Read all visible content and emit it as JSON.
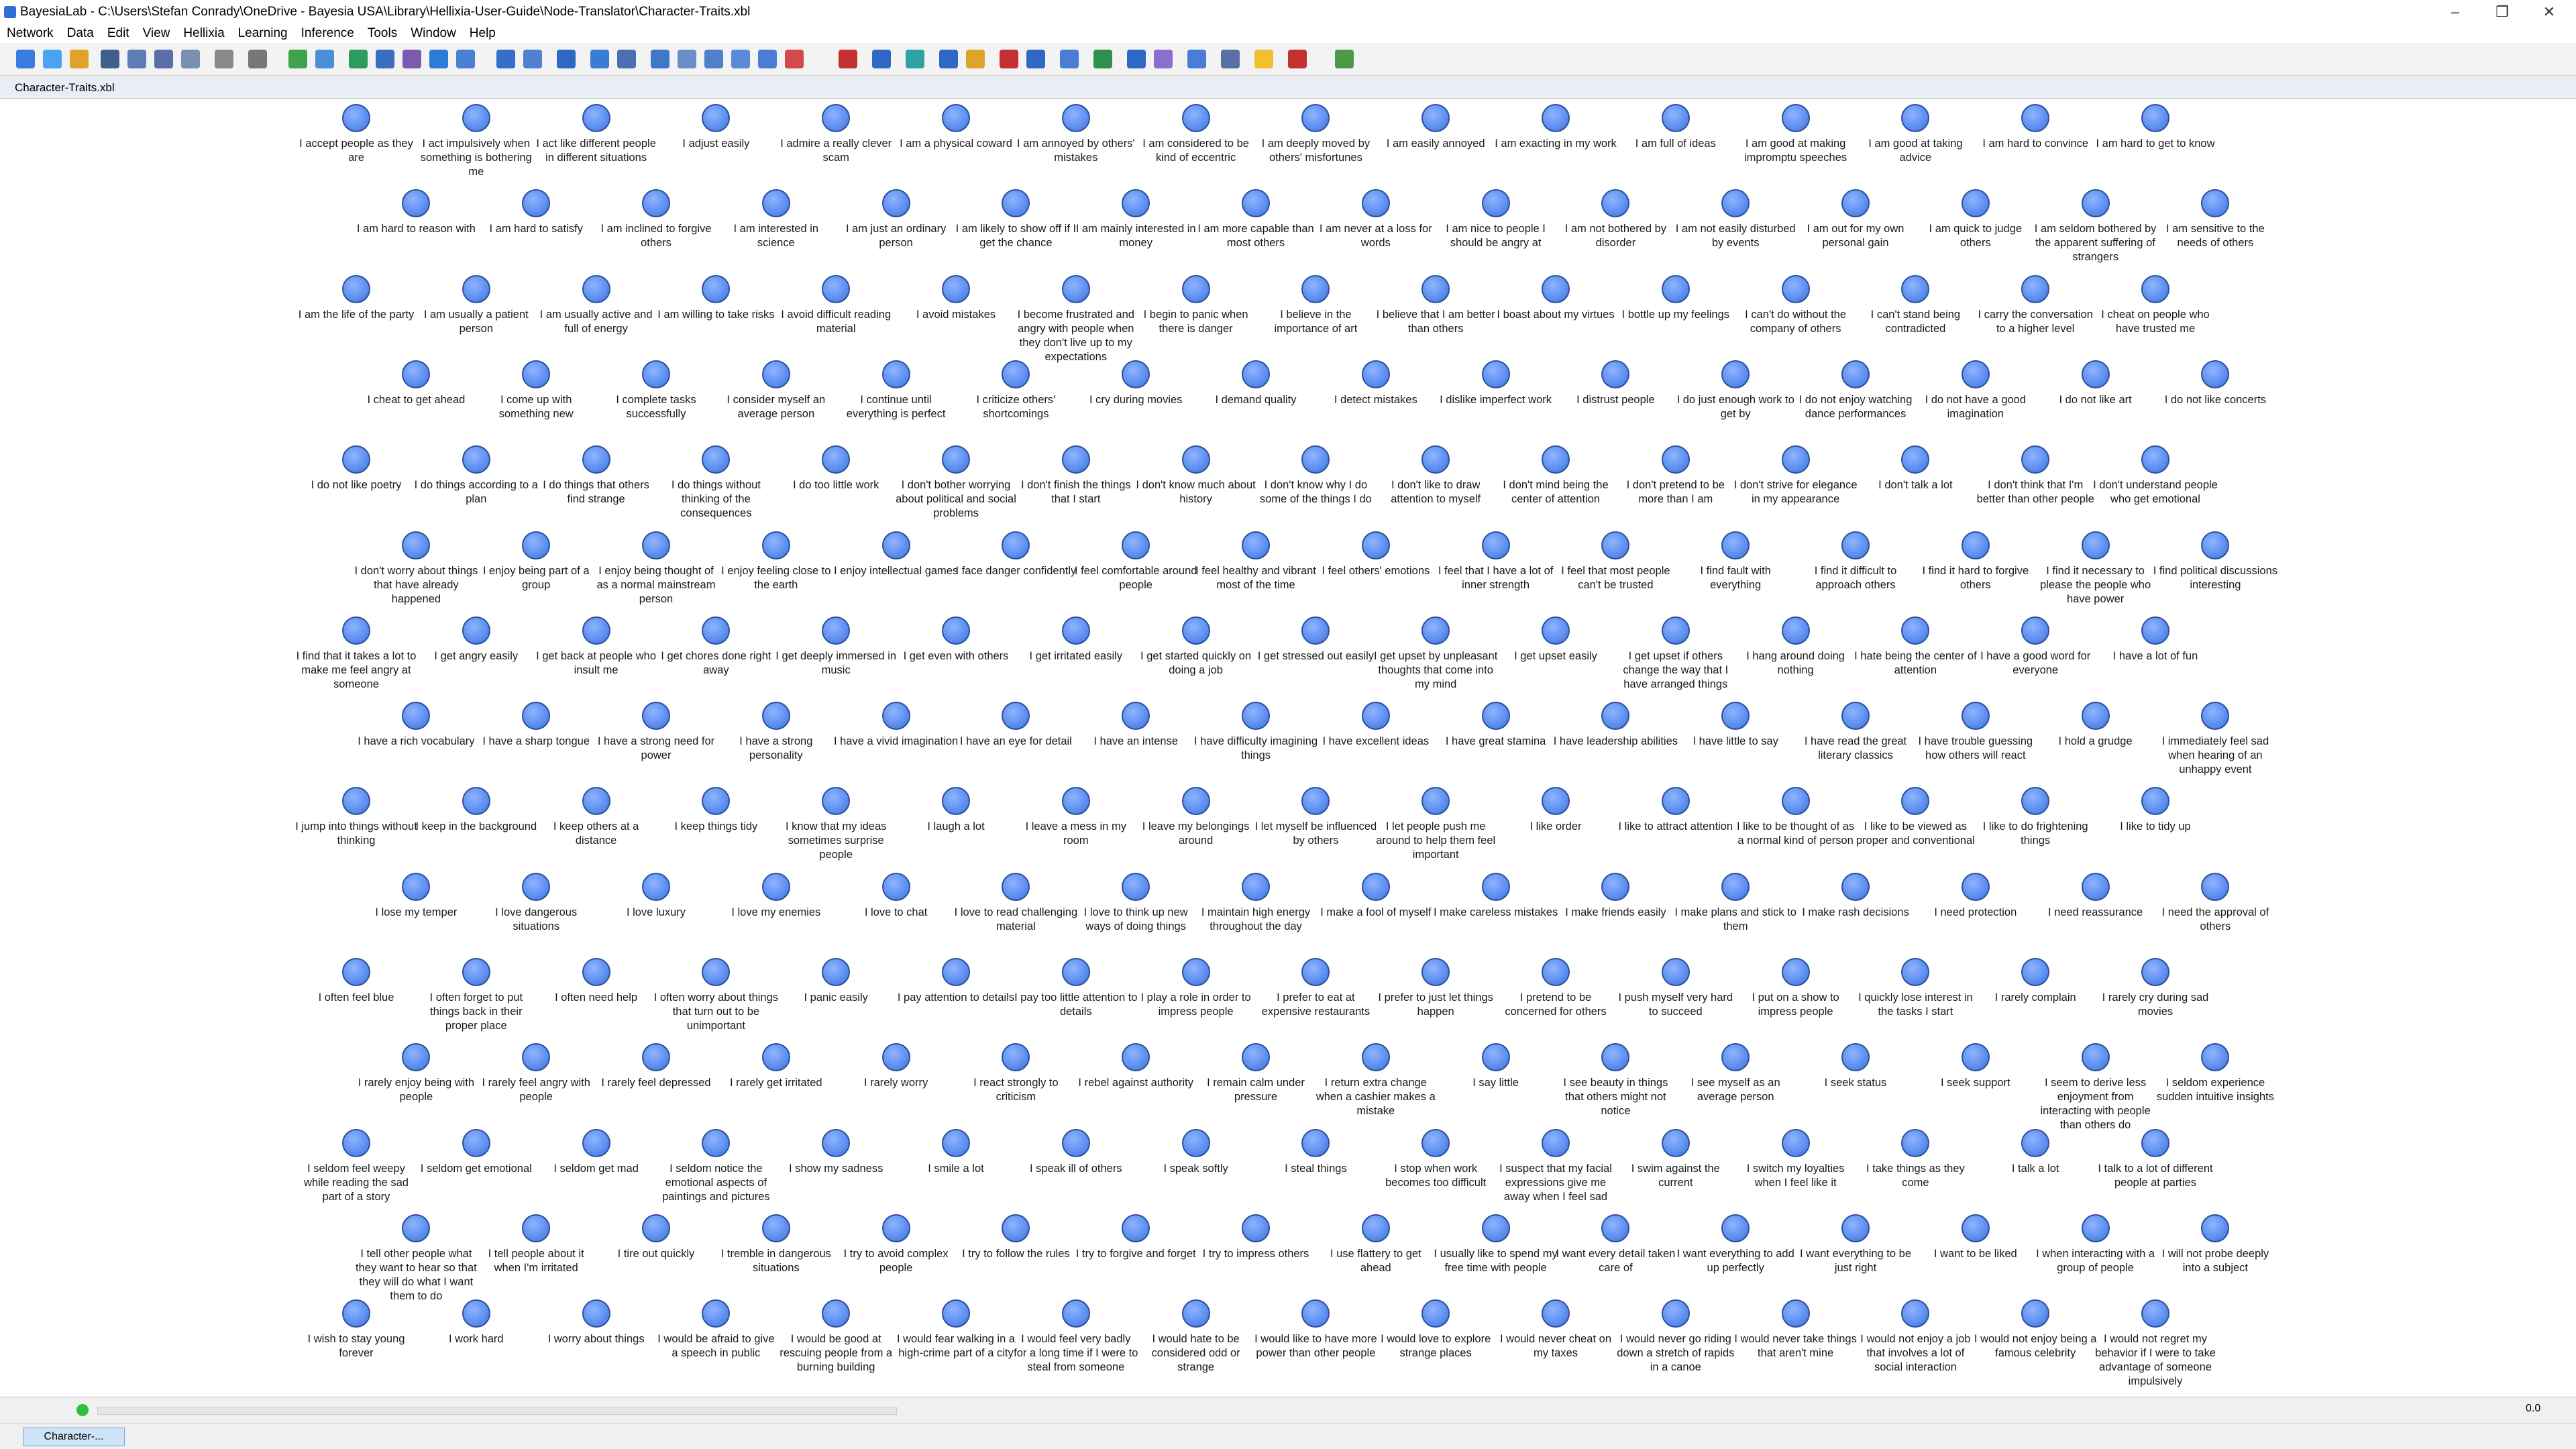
{
  "window_title": "BayesiaLab - C:\\Users\\Stefan Conrady\\OneDrive - Bayesia USA\\Library\\Hellixia-User-Guide\\Node-Translator\\Character-Traits.xbl",
  "menu": [
    "Network",
    "Data",
    "Edit",
    "View",
    "Hellixia",
    "Learning",
    "Inference",
    "Tools",
    "Window",
    "Help"
  ],
  "document_title": "Character-Traits.xbl",
  "status_value": "0.0",
  "taskbar_tab": "Character-...",
  "node_rows": [
    [
      "I accept people as they are",
      "I act impulsively when something is bothering me",
      "I act like different people in different situations",
      "I adjust easily",
      "I admire a really clever scam",
      "I am a physical coward",
      "I am annoyed by others' mistakes",
      "I am considered to be kind of eccentric",
      "I am deeply moved by others' misfortunes",
      "I am easily annoyed",
      "I am exacting in my work",
      "I am full of ideas",
      "I am good at making impromptu speeches",
      "I am good at taking advice",
      "I am hard to convince",
      "I am hard to get to know"
    ],
    [
      "I am hard to reason with",
      "I am hard to satisfy",
      "I am inclined to forgive others",
      "I am interested in science",
      "I am just an ordinary person",
      "I am likely to show off if I get the chance",
      "I am mainly interested in money",
      "I am more capable than most others",
      "I am never at a loss for words",
      "I am nice to people I should be angry at",
      "I am not bothered by disorder",
      "I am not easily disturbed by events",
      "I am out for my own personal gain",
      "I am quick to judge others",
      "I am seldom bothered by the apparent suffering of strangers",
      "I am sensitive to the needs of others"
    ],
    [
      "I am the life of the party",
      "I am usually a patient person",
      "I am usually active and full of energy",
      "I am willing to take risks",
      "I avoid difficult reading material",
      "I avoid mistakes",
      "I become frustrated and angry with people when they don't live up to my expectations",
      "I begin to panic when there is danger",
      "I believe in the importance of art",
      "I believe that I am better than others",
      "I boast about my virtues",
      "I bottle up my feelings",
      "I can't do without the company of others",
      "I can't stand being contradicted",
      "I carry the conversation to a higher level",
      "I cheat on people who have trusted me"
    ],
    [
      "I cheat to get ahead",
      "I come up with something new",
      "I complete tasks successfully",
      "I consider myself an average person",
      "I continue until everything is perfect",
      "I criticize others' shortcomings",
      "I cry during movies",
      "I demand quality",
      "I detect mistakes",
      "I dislike imperfect work",
      "I distrust people",
      "I do just enough work to get by",
      "I do not enjoy watching dance performances",
      "I do not have a good imagination",
      "I do not like art",
      "I do not like concerts"
    ],
    [
      "I do not like poetry",
      "I do things according to a plan",
      "I do things that others find strange",
      "I do things without thinking of the consequences",
      "I do too little work",
      "I don't bother worrying about political and social problems",
      "I don't finish the things that I start",
      "I don't know much about history",
      "I don't know why I do some of the things I do",
      "I don't like to draw attention to myself",
      "I don't mind being the center of attention",
      "I don't pretend to be more than I am",
      "I don't strive for elegance in my appearance",
      "I don't talk a lot",
      "I don't think that I'm better than other people",
      "I don't understand people who get emotional"
    ],
    [
      "I don't worry about things that have already happened",
      "I enjoy being part of a group",
      "I enjoy being thought of as a normal mainstream person",
      "I enjoy feeling close to the earth",
      "I enjoy intellectual games",
      "I face danger confidently",
      "I feel comfortable around people",
      "I feel healthy and vibrant most of the time",
      "I feel others' emotions",
      "I feel that I have a lot of inner strength",
      "I feel that most people can't be trusted",
      "I find fault with everything",
      "I find it difficult to approach others",
      "I find it hard to forgive others",
      "I find it necessary to please the people who have power",
      "I find political discussions interesting"
    ],
    [
      "I find that it takes a lot to make me feel angry at someone",
      "I get angry easily",
      "I get back at people who insult me",
      "I get chores done right away",
      "I get deeply immersed in music",
      "I get even with others",
      "I get irritated easily",
      "I get started quickly on doing a job",
      "I get stressed out easily",
      "I get upset by unpleasant thoughts that come into my mind",
      "I get upset easily",
      "I get upset if others change the way that I have arranged things",
      "I hang around doing nothing",
      "I hate being the center of attention",
      "I have a good word for everyone",
      "I have a lot of fun"
    ],
    [
      "I have a rich vocabulary",
      "I have a sharp tongue",
      "I have a strong need for power",
      "I have a strong personality",
      "I have a vivid imagination",
      "I have an eye for detail",
      "I have an intense",
      "I have difficulty imagining things",
      "I have excellent ideas",
      "I have great stamina",
      "I have leadership abilities",
      "I have little to say",
      "I have read the great literary classics",
      "I have trouble guessing how others will react",
      "I hold a grudge",
      "I immediately feel sad when hearing of an unhappy event"
    ],
    [
      "I jump into things without thinking",
      "I keep in the background",
      "I keep others at a distance",
      "I keep things tidy",
      "I know that my ideas sometimes surprise people",
      "I laugh a lot",
      "I leave a mess in my room",
      "I leave my belongings around",
      "I let myself be influenced by others",
      "I let people push me around to help them feel important",
      "I like order",
      "I like to attract attention",
      "I like to be thought of as a normal kind of person",
      "I like to be viewed as proper and conventional",
      "I like to do frightening things",
      "I like to tidy up"
    ],
    [
      "I lose my temper",
      "I love dangerous situations",
      "I love luxury",
      "I love my enemies",
      "I love to chat",
      "I love to read challenging material",
      "I love to think up new ways of doing things",
      "I maintain high energy throughout the day",
      "I make a fool of myself",
      "I make careless mistakes",
      "I make friends easily",
      "I make plans and stick to them",
      "I make rash decisions",
      "I need protection",
      "I need reassurance",
      "I need the approval of others"
    ],
    [
      "I often feel blue",
      "I often forget to put things back in their proper place",
      "I often need help",
      "I often worry about things that turn out to be unimportant",
      "I panic easily",
      "I pay attention to details",
      "I pay too little attention to details",
      "I play a role in order to impress people",
      "I prefer to eat at expensive restaurants",
      "I prefer to just let things happen",
      "I pretend to be concerned for others",
      "I push myself very hard to succeed",
      "I put on a show to impress people",
      "I quickly lose interest in the tasks I start",
      "I rarely complain",
      "I rarely cry during sad movies"
    ],
    [
      "I rarely enjoy being with people",
      "I rarely feel angry with people",
      "I rarely feel depressed",
      "I rarely get irritated",
      "I rarely worry",
      "I react strongly to criticism",
      "I rebel against authority",
      "I remain calm under pressure",
      "I return extra change when a cashier makes a mistake",
      "I say little",
      "I see beauty in things that others might not notice",
      "I see myself as an average person",
      "I seek status",
      "I seek support",
      "I seem to derive less enjoyment from interacting with people than others do",
      "I seldom experience sudden intuitive insights"
    ],
    [
      "I seldom feel weepy while reading the sad part of a story",
      "I seldom get emotional",
      "I seldom get mad",
      "I seldom notice the emotional aspects of paintings and pictures",
      "I show my sadness",
      "I smile a lot",
      "I speak ill of others",
      "I speak softly",
      "I steal things",
      "I stop when work becomes too difficult",
      "I suspect that my facial expressions give me away when I feel sad",
      "I swim against the current",
      "I switch my loyalties when I feel like it",
      "I take things as they come",
      "I talk a lot",
      "I talk to a lot of different people at parties"
    ],
    [
      "I tell other people what they want to hear so that they will do what I want them to do",
      "I tell people about it when I'm irritated",
      "I tire out quickly",
      "I tremble in dangerous situations",
      "I try to avoid complex people",
      "I try to follow the rules",
      "I try to forgive and forget",
      "I try to impress others",
      "I use flattery to get ahead",
      "I usually like to spend my free time with people",
      "I want every detail taken care of",
      "I want everything to add up perfectly",
      "I want everything to be just right",
      "I want to be liked",
      "I when interacting with a group of people",
      "I will not probe deeply into a subject"
    ],
    [
      "I wish to stay young forever",
      "I work hard",
      "I worry about things",
      "I would be afraid to give a speech in public",
      "I would be good at rescuing people from a burning building",
      "I would fear walking in a high-crime part of a city",
      "I would feel very badly for a long time if I were to steal from someone",
      "I would hate to be considered odd or strange",
      "I would like to have more power than other people",
      "I would love to explore strange places",
      "I would never cheat on my taxes",
      "I would never go riding down a stretch of rapids in a canoe",
      "I would never take things that aren't mine",
      "I would not enjoy a job that involves a lot of social interaction",
      "I would not enjoy being a famous celebrity",
      "I would not regret my behavior if I were to take advantage of someone impulsively"
    ]
  ]
}
